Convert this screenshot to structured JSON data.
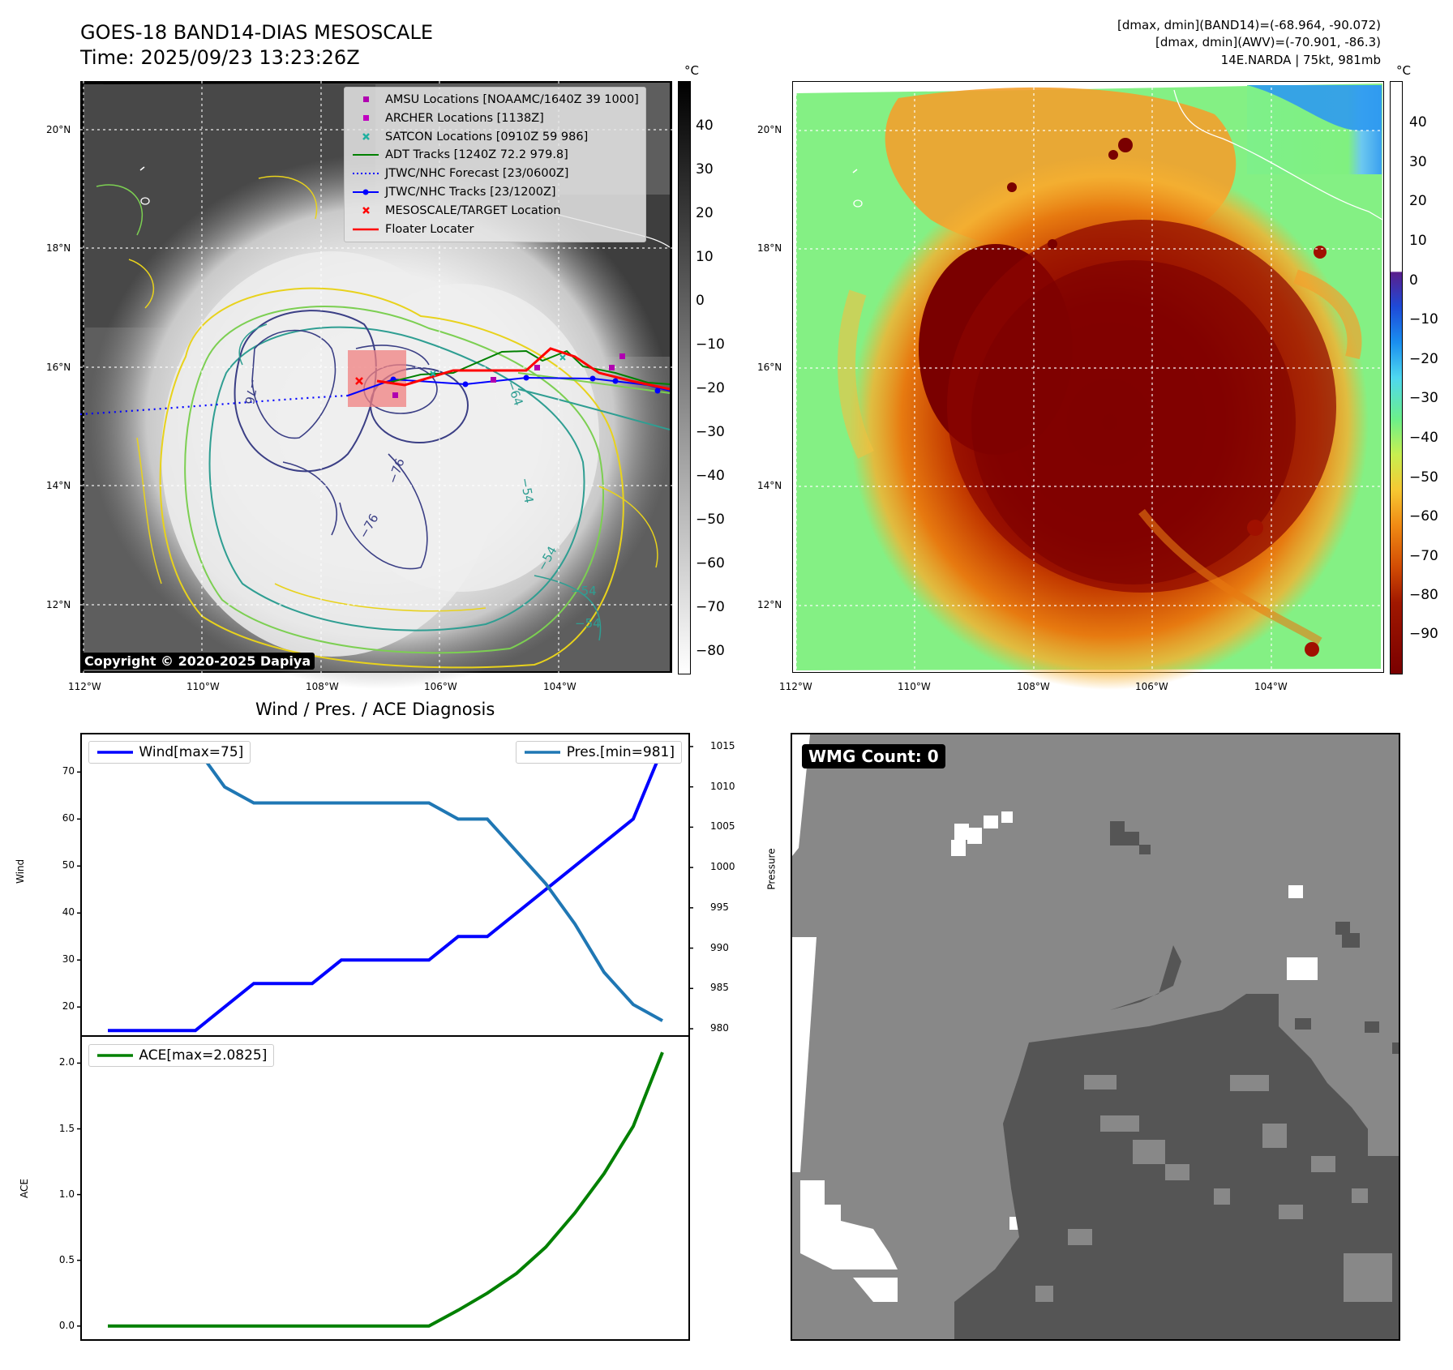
{
  "header": {
    "title": "GOES-18 BAND14-DIAS MESOSCALE",
    "time": "Time: 2025/09/23 13:23:26Z",
    "info_line1": "[dmax, dmin](BAND14)=(-68.964, -90.072)",
    "info_line2": "[dmax, dmin](AWV)=(-70.901, -86.3)",
    "info_line3": "14E.NARDA | 75kt, 981mb"
  },
  "map_axes": {
    "lat_labels": [
      "20°N",
      "18°N",
      "16°N",
      "14°N",
      "12°N"
    ],
    "lon_labels": [
      "112°W",
      "110°W",
      "108°W",
      "106°W",
      "104°W"
    ]
  },
  "map_left": {
    "legend": [
      {
        "label": "AMSU Locations [NOAAMC/1640Z 39 1000]",
        "color": "#b000b0",
        "icon": "square-marker"
      },
      {
        "label": "ARCHER Locations [1138Z]",
        "color": "#c000c0",
        "icon": "square-marker"
      },
      {
        "label": "SATCON Locations [0910Z 59 986]",
        "color": "#20b0a0",
        "icon": "x-marker"
      },
      {
        "label": "ADT Tracks [1240Z 72.2 979.8]",
        "color": "#008000",
        "icon": "line"
      },
      {
        "label": "JTWC/NHC Forecast [23/0600Z]",
        "color": "#0000ff",
        "icon": "dotted-line"
      },
      {
        "label": "JTWC/NHC Tracks [23/1200Z]",
        "color": "#0000ff",
        "icon": "line-dot"
      },
      {
        "label": "MESOSCALE/TARGET Location",
        "color": "#ff0000",
        "icon": "x-marker"
      },
      {
        "label": "Floater Locater",
        "color": "#ff0000",
        "icon": "line"
      }
    ],
    "copyright": "Copyright © 2020-2025 Dapiya",
    "colorbar": {
      "unit": "°C",
      "ticks": [
        "40",
        "30",
        "20",
        "10",
        "0",
        "−10",
        "−20",
        "−30",
        "−40",
        "−50",
        "−60",
        "−70",
        "−80"
      ]
    },
    "contour_labels": [
      "−76",
      "−64",
      "−54",
      "−76",
      "−54",
      "−54",
      "−76",
      "−54"
    ]
  },
  "map_right": {
    "colorbar": {
      "unit": "°C",
      "ticks": [
        "40",
        "30",
        "20",
        "10",
        "0",
        "−10",
        "−20",
        "−30",
        "−40",
        "−50",
        "−60",
        "−70",
        "−80",
        "−90"
      ]
    }
  },
  "diagnosis": {
    "title": "Wind / Pres. / ACE Diagnosis",
    "wind_legend": "Wind[max=75]",
    "pres_legend": "Pres.[min=981]",
    "ace_legend": "ACE[max=2.0825]",
    "wind_axis_label": "Wind",
    "pres_axis_label": "Pressure",
    "ace_axis_label": "ACE",
    "wind_ticks": [
      "70",
      "60",
      "50",
      "40",
      "30",
      "20"
    ],
    "pres_ticks": [
      "1015",
      "1010",
      "1005",
      "1000",
      "995",
      "990",
      "985",
      "980"
    ],
    "ace_ticks": [
      "2.0",
      "1.5",
      "1.0",
      "0.5",
      "0.0"
    ]
  },
  "wmg": {
    "label": "WMG Count: 0"
  },
  "chart_data": [
    {
      "type": "line",
      "title": "Wind / Pres. / ACE Diagnosis",
      "x": [
        0,
        1,
        2,
        3,
        4,
        5,
        6,
        7,
        8,
        9,
        10,
        11,
        12,
        13,
        14,
        15,
        16,
        17,
        18,
        19
      ],
      "series": [
        {
          "name": "Wind[max=75]",
          "axis": "left",
          "color": "#0000ff",
          "values": [
            15,
            15,
            15,
            15,
            20,
            25,
            25,
            25,
            30,
            30,
            30,
            30,
            35,
            35,
            40,
            45,
            50,
            55,
            60,
            75
          ]
        },
        {
          "name": "Pres.[min=981]",
          "axis": "right",
          "color": "#1f77b4",
          "values": [
            1015,
            1015,
            1015,
            1015,
            1010,
            1008,
            1008,
            1008,
            1008,
            1008,
            1008,
            1008,
            1006,
            1006,
            1002,
            998,
            993,
            987,
            983,
            981
          ]
        }
      ],
      "ylabel": "Wind",
      "ylim": [
        14,
        78
      ],
      "y2label": "Pressure",
      "y2lim": [
        979.2,
        1016.5
      ]
    },
    {
      "type": "line",
      "x": [
        0,
        1,
        2,
        3,
        4,
        5,
        6,
        7,
        8,
        9,
        10,
        11,
        12,
        13,
        14,
        15,
        16,
        17,
        18,
        19
      ],
      "series": [
        {
          "name": "ACE[max=2.0825]",
          "color": "#008000",
          "values": [
            0,
            0,
            0,
            0,
            0,
            0,
            0,
            0,
            0,
            0,
            0,
            0,
            0.12,
            0.25,
            0.4,
            0.6,
            0.86,
            1.16,
            1.52,
            2.0825
          ]
        }
      ],
      "ylabel": "ACE",
      "ylim": [
        -0.1,
        2.2
      ]
    }
  ]
}
